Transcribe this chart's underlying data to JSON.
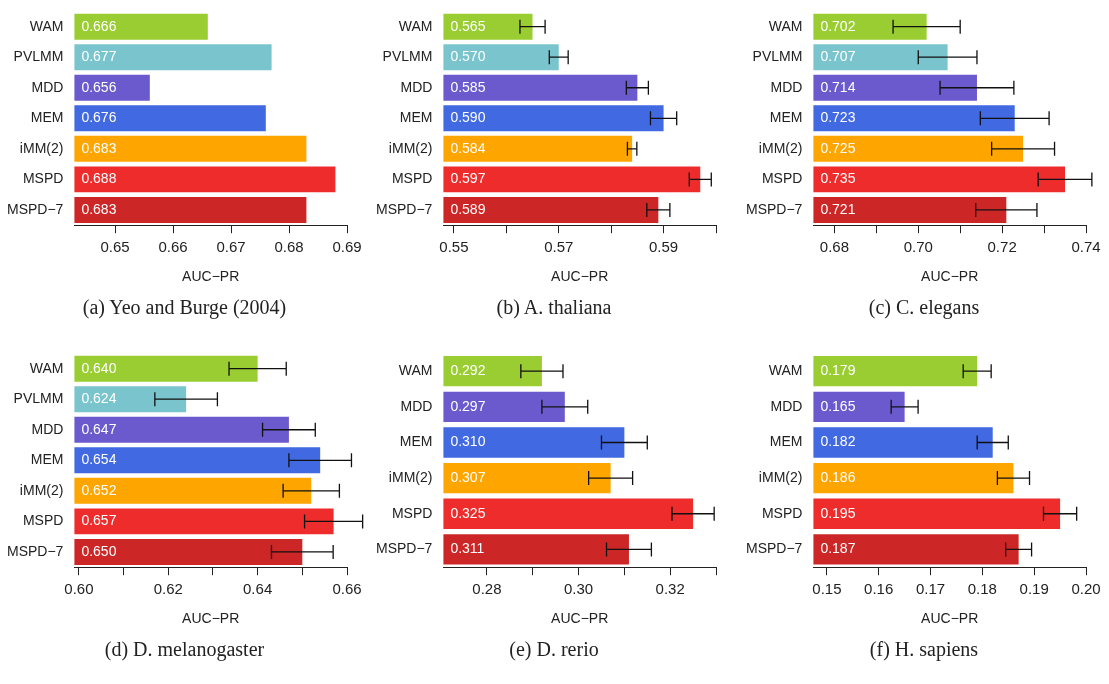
{
  "chart_data": [
    {
      "type": "bar",
      "orientation": "horizontal",
      "title": "(a) Yeo and Burge (2004)",
      "xlabel": "AUC−PR",
      "categories": [
        "WAM",
        "PVLMM",
        "MDD",
        "MEM",
        "iMM(2)",
        "MSPD",
        "MSPD−7"
      ],
      "values": [
        0.666,
        0.677,
        0.656,
        0.676,
        0.683,
        0.688,
        0.683
      ],
      "value_labels": [
        "0.666",
        "0.677",
        "0.656",
        "0.676",
        "0.683",
        "0.688",
        "0.683"
      ],
      "colors": [
        "#9acd32",
        "#7ac5cd",
        "#6a5acd",
        "#4169e1",
        "#ffa500",
        "#ee2c2c",
        "#cd2626"
      ],
      "xlim": [
        0.643,
        0.69
      ],
      "xticks": [
        0.65,
        0.66,
        0.67,
        0.68,
        0.69
      ]
    },
    {
      "type": "bar",
      "orientation": "horizontal",
      "title": "(b) A. thaliana",
      "xlabel": "AUC−PR",
      "categories": [
        "WAM",
        "PVLMM",
        "MDD",
        "MEM",
        "iMM(2)",
        "MSPD",
        "MSPD−7"
      ],
      "values": [
        0.565,
        0.57,
        0.585,
        0.59,
        0.584,
        0.597,
        0.589
      ],
      "value_labels": [
        "0.565",
        "0.570",
        "0.585",
        "0.590",
        "0.584",
        "0.597",
        "0.589"
      ],
      "colors": [
        "#9acd32",
        "#7ac5cd",
        "#6a5acd",
        "#4169e1",
        "#ffa500",
        "#ee2c2c",
        "#cd2626"
      ],
      "errors": [
        0.0024,
        0.0018,
        0.0021,
        0.0025,
        0.0009,
        0.0021,
        0.0022
      ],
      "xlim": [
        0.548,
        0.6
      ],
      "xticks": [
        0.55,
        {
          "value": 0.56,
          "label": null
        },
        0.57,
        {
          "value": 0.58,
          "label": null
        },
        0.59,
        {
          "value": 0.6,
          "label": null
        }
      ]
    },
    {
      "type": "bar",
      "orientation": "horizontal",
      "title": "(c) C. elegans",
      "xlabel": "AUC−PR",
      "categories": [
        "WAM",
        "PVLMM",
        "MDD",
        "MEM",
        "iMM(2)",
        "MSPD",
        "MSPD−7"
      ],
      "values": [
        0.702,
        0.707,
        0.714,
        0.723,
        0.725,
        0.735,
        0.721
      ],
      "value_labels": [
        "0.702",
        "0.707",
        "0.714",
        "0.723",
        "0.725",
        "0.735",
        "0.721"
      ],
      "colors": [
        "#9acd32",
        "#7ac5cd",
        "#6a5acd",
        "#4169e1",
        "#ffa500",
        "#ee2c2c",
        "#cd2626"
      ],
      "errors": [
        0.008,
        0.007,
        0.0088,
        0.0082,
        0.0075,
        0.0064,
        0.0073
      ],
      "xlim": [
        0.675,
        0.74
      ],
      "xticks": [
        0.68,
        {
          "value": 0.69,
          "label": null
        },
        {
          "value": 0.7,
          "label": "0.70"
        },
        {
          "value": 0.71,
          "label": null
        },
        0.72,
        {
          "value": 0.73,
          "label": null
        },
        0.74
      ]
    },
    {
      "type": "bar",
      "orientation": "horizontal",
      "title": "(d) D. melanogaster",
      "xlabel": "AUC−PR",
      "categories": [
        "WAM",
        "PVLMM",
        "MDD",
        "MEM",
        "iMM(2)",
        "MSPD",
        "MSPD−7"
      ],
      "values": [
        0.64,
        0.624,
        0.647,
        0.654,
        0.652,
        0.657,
        0.65
      ],
      "value_labels": [
        "0.640",
        "0.624",
        "0.647",
        "0.654",
        "0.652",
        "0.657",
        "0.650"
      ],
      "colors": [
        "#9acd32",
        "#7ac5cd",
        "#6a5acd",
        "#4169e1",
        "#ffa500",
        "#ee2c2c",
        "#cd2626"
      ],
      "errors": [
        0.0064,
        0.007,
        0.0059,
        0.007,
        0.0063,
        0.0065,
        0.0069
      ],
      "xlim": [
        0.599,
        0.66
      ],
      "xticks": [
        {
          "value": 0.6,
          "label": "0.60"
        },
        {
          "value": 0.61,
          "label": null
        },
        0.62,
        {
          "value": 0.63,
          "label": null
        },
        0.64,
        {
          "value": 0.65,
          "label": null
        },
        0.66
      ]
    },
    {
      "type": "bar",
      "orientation": "horizontal",
      "title": "(e) D. rerio",
      "xlabel": "AUC−PR",
      "categories": [
        "WAM",
        "MDD",
        "MEM",
        "iMM(2)",
        "MSPD",
        "MSPD−7"
      ],
      "values": [
        0.292,
        0.297,
        0.31,
        0.307,
        0.325,
        0.311
      ],
      "value_labels": [
        "0.292",
        "0.297",
        "0.310",
        "0.307",
        "0.325",
        "0.311"
      ],
      "colors": [
        "#9acd32",
        "#6a5acd",
        "#4169e1",
        "#ffa500",
        "#ee2c2c",
        "#cd2626"
      ],
      "errors": [
        0.0046,
        0.005,
        0.005,
        0.0048,
        0.0046,
        0.0049
      ],
      "xlim": [
        0.2705,
        0.33
      ],
      "xticks": [
        0.28,
        {
          "value": 0.29,
          "label": null
        },
        {
          "value": 0.3,
          "label": "0.30"
        },
        {
          "value": 0.31,
          "label": null
        },
        0.32,
        {
          "value": 0.33,
          "label": null
        }
      ]
    },
    {
      "type": "bar",
      "orientation": "horizontal",
      "title": "(f) H. sapiens",
      "xlabel": "AUC−PR",
      "categories": [
        "WAM",
        "MDD",
        "MEM",
        "iMM(2)",
        "MSPD",
        "MSPD−7"
      ],
      "values": [
        0.179,
        0.165,
        0.182,
        0.186,
        0.195,
        0.187
      ],
      "value_labels": [
        "0.179",
        "0.165",
        "0.182",
        "0.186",
        "0.195",
        "0.187"
      ],
      "colors": [
        "#9acd32",
        "#6a5acd",
        "#4169e1",
        "#ffa500",
        "#ee2c2c",
        "#cd2626"
      ],
      "errors": [
        0.0027,
        0.0026,
        0.003,
        0.0031,
        0.0032,
        0.0025
      ],
      "xlim": [
        0.1474,
        0.2
      ],
      "xticks": [
        0.15,
        0.16,
        0.17,
        0.18,
        0.19,
        {
          "value": 0.2,
          "label": "0.20"
        }
      ]
    }
  ]
}
